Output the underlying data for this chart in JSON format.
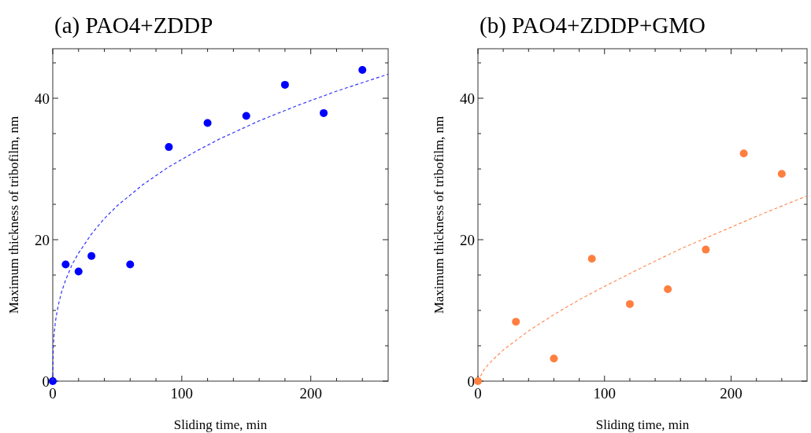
{
  "chart_data": [
    {
      "type": "scatter",
      "title": "(a) PAO4+ZDDP",
      "xlabel": "Sliding time, min",
      "ylabel": "Maximum thickness of tribofilm, nm",
      "xlim": [
        0,
        260
      ],
      "ylim": [
        0,
        47
      ],
      "xticks": [
        0,
        {
          "value": 20,
          "label": null
        },
        {
          "value": 40,
          "label": null
        },
        {
          "value": 60,
          "label": null
        },
        {
          "value": 80,
          "label": null
        },
        100,
        {
          "value": 120,
          "label": null
        },
        {
          "value": 140,
          "label": null
        },
        {
          "value": 160,
          "label": null
        },
        {
          "value": 180,
          "label": null
        },
        200,
        {
          "value": 220,
          "label": null
        },
        {
          "value": 240,
          "label": null
        }
      ],
      "yticks": [
        0,
        {
          "value": 5,
          "label": null
        },
        {
          "value": 10,
          "label": null
        },
        {
          "value": 15,
          "label": null
        },
        20,
        {
          "value": 25,
          "label": null
        },
        {
          "value": 30,
          "label": null
        },
        {
          "value": 35,
          "label": null
        },
        40,
        {
          "value": 45,
          "label": null
        }
      ],
      "series": [
        {
          "marker": "circle",
          "color": "#0000ff",
          "x": [
            0,
            10,
            20,
            30,
            60,
            90,
            120,
            150,
            180,
            210,
            240
          ],
          "values": [
            0,
            16.5,
            15.5,
            17.7,
            16.5,
            33.1,
            36.5,
            37.5,
            41.9,
            37.9,
            44.0
          ]
        },
        {
          "type": "line",
          "marker": "none",
          "line_style": "dashed",
          "color": "#3333ff",
          "x": [
            0,
            0.5,
            1,
            2,
            3,
            5,
            7,
            10,
            15,
            20,
            30,
            40,
            50,
            70,
            90,
            110,
            130,
            160,
            190,
            220,
            260
          ],
          "values": [
            0,
            5.2,
            6.6,
            8.3,
            9.5,
            11.3,
            12.7,
            14.3,
            16.5,
            18.1,
            20.8,
            23.0,
            24.8,
            27.8,
            30.3,
            32.4,
            34.3,
            36.8,
            39.0,
            41.0,
            43.4
          ]
        }
      ]
    },
    {
      "type": "scatter",
      "title": "(b) PAO4+ZDDP+GMO",
      "xlabel": "Sliding time, min",
      "ylabel": "Maximum thickness of tribofilm, nm",
      "xlim": [
        0,
        260
      ],
      "ylim": [
        0,
        47
      ],
      "xticks": [
        0,
        {
          "value": 20,
          "label": null
        },
        {
          "value": 40,
          "label": null
        },
        {
          "value": 60,
          "label": null
        },
        {
          "value": 80,
          "label": null
        },
        100,
        {
          "value": 120,
          "label": null
        },
        {
          "value": 140,
          "label": null
        },
        {
          "value": 160,
          "label": null
        },
        {
          "value": 180,
          "label": null
        },
        200,
        {
          "value": 220,
          "label": null
        },
        {
          "value": 240,
          "label": null
        }
      ],
      "yticks": [
        0,
        {
          "value": 5,
          "label": null
        },
        {
          "value": 10,
          "label": null
        },
        {
          "value": 15,
          "label": null
        },
        20,
        {
          "value": 25,
          "label": null
        },
        {
          "value": 30,
          "label": null
        },
        {
          "value": 35,
          "label": null
        },
        40,
        {
          "value": 45,
          "label": null
        }
      ],
      "series": [
        {
          "marker": "circle",
          "color": "#ff7f40",
          "x": [
            0,
            30,
            60,
            90,
            120,
            150,
            180,
            210,
            240
          ],
          "values": [
            0,
            8.4,
            3.2,
            17.3,
            10.9,
            13.0,
            18.6,
            32.2,
            29.3
          ]
        },
        {
          "type": "line",
          "marker": "none",
          "line_style": "dashed",
          "color": "#ff8c55",
          "x": [
            0,
            5,
            10,
            20,
            40,
            60,
            80,
            100,
            130,
            160,
            190,
            220,
            260
          ],
          "values": [
            0,
            1.7,
            2.7,
            4.4,
            7.1,
            9.4,
            11.5,
            13.4,
            16.1,
            18.7,
            21.0,
            23.3,
            26.2
          ]
        }
      ]
    }
  ]
}
